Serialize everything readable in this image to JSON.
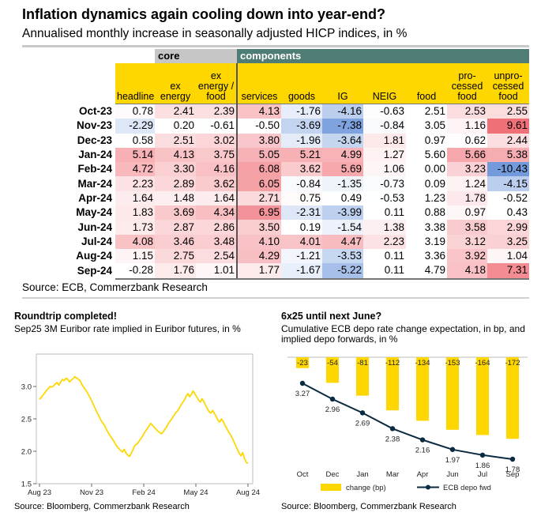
{
  "main": {
    "title": "Inflation dynamics again cooling down into year-end?",
    "subtitle": "Annualised monthly increase in seasonally adjusted HICP indices, in %",
    "group_core": "core",
    "group_components": "components",
    "columns": [
      "headline",
      "ex energy",
      "ex energy / food",
      "services",
      "goods",
      "IG",
      "NEIG",
      "food",
      "pro-cessed food",
      "unpro-cessed food"
    ],
    "source": "Source: ECB, Commerzbank Research"
  },
  "chart_data": [
    {
      "type": "table",
      "title": "Inflation dynamics again cooling down into year-end?",
      "subtitle": "Annualised monthly increase in seasonally adjusted HICP indices, in %",
      "columns": [
        "headline",
        "ex energy",
        "ex energy / food",
        "services",
        "goods",
        "IG",
        "NEIG",
        "food",
        "pro-cessed food",
        "unpro-cessed food"
      ],
      "rows": [
        "Oct-23",
        "Nov-23",
        "Dec-23",
        "Jan-24",
        "Feb-24",
        "Mar-24",
        "Apr-24",
        "May-24",
        "Jun-24",
        "Jul-24",
        "Aug-24",
        "Sep-24"
      ],
      "values": [
        [
          "0.78",
          "2.41",
          "2.39",
          "4.13",
          "-1.76",
          "-4.16",
          "-0.63",
          "2.51",
          "2.53",
          "2.55"
        ],
        [
          "-2.29",
          "0.20",
          "-0.61",
          "-0.50",
          "-3.69",
          "-7.38",
          "-0.84",
          "3.05",
          "1.16",
          "9.61"
        ],
        [
          "0.58",
          "2.51",
          "3.02",
          "3.80",
          "-1.96",
          "-3.64",
          "1.81",
          "0.97",
          "0.62",
          "2.44"
        ],
        [
          "5.14",
          "4.13",
          "3.75",
          "5.05",
          "5.21",
          "4.99",
          "1.27",
          "5.60",
          "5.66",
          "5.38"
        ],
        [
          "4.72",
          "3.30",
          "4.16",
          "6.08",
          "3.62",
          "5.69",
          "1.06",
          "0.00",
          "3.23",
          "-10.43"
        ],
        [
          "2.23",
          "2.89",
          "3.62",
          "6.05",
          "-0.84",
          "-1.35",
          "-0.73",
          "0.09",
          "1.24",
          "-4.15"
        ],
        [
          "1.64",
          "1.48",
          "1.64",
          "2.71",
          "0.75",
          "0.49",
          "-0.53",
          "1.23",
          "1.78",
          "-0.52"
        ],
        [
          "1.83",
          "3.69",
          "4.34",
          "6.95",
          "-2.31",
          "-3.99",
          "0.11",
          "0.88",
          "0.97",
          "0.43"
        ],
        [
          "1.73",
          "2.87",
          "2.86",
          "3.50",
          "0.19",
          "-1.54",
          "1.38",
          "3.38",
          "3.58",
          "2.99"
        ],
        [
          "4.08",
          "3.46",
          "3.48",
          "4.10",
          "4.01",
          "4.47",
          "2.23",
          "3.19",
          "3.12",
          "3.25"
        ],
        [
          "1.15",
          "2.75",
          "2.54",
          "4.29",
          "-1.21",
          "-3.53",
          "0.11",
          "3.36",
          "3.92",
          "1.04"
        ],
        [
          "-0.28",
          "1.76",
          "1.01",
          "1.77",
          "-1.67",
          "-5.22",
          "0.11",
          "4.79",
          "4.18",
          "7.31"
        ]
      ],
      "colors": {
        "header": "#ffd700",
        "core_group": "#c6c6c6",
        "components_group": "#4f7c74",
        "positive": "#f08080",
        "negative": "#6b8fd6"
      }
    },
    {
      "type": "line",
      "title": "Roundtrip completed!",
      "subtitle": "Sep25 3M Euribor rate implied in Euribor futures, in %",
      "x_ticks": [
        "Aug 23",
        "Nov 23",
        "Feb 24",
        "May 24",
        "Aug 24"
      ],
      "y_ticks": [
        "1.5",
        "2.0",
        "2.5",
        "3.0"
      ],
      "ylim": [
        1.5,
        3.5
      ],
      "series": [
        {
          "name": "Sep25 3M Euribor implied",
          "color": "#ffd700",
          "values": [
            2.8,
            2.83,
            2.87,
            2.9,
            2.94,
            2.97,
            3.0,
            2.99,
            3.01,
            3.04,
            3.06,
            3.02,
            3.07,
            3.11,
            3.09,
            3.13,
            3.11,
            3.07,
            3.1,
            3.12,
            3.15,
            3.13,
            3.11,
            3.09,
            3.03,
            2.99,
            2.95,
            2.91,
            2.86,
            2.81,
            2.75,
            2.69,
            2.63,
            2.58,
            2.52,
            2.47,
            2.43,
            2.39,
            2.33,
            2.28,
            2.24,
            2.2,
            2.16,
            2.11,
            2.07,
            2.04,
            2.01,
            1.99,
            2.03,
            1.97,
            1.94,
            1.92,
            1.97,
            2.03,
            2.09,
            2.11,
            2.14,
            2.18,
            2.22,
            2.27,
            2.31,
            2.35,
            2.39,
            2.43,
            2.4,
            2.37,
            2.34,
            2.31,
            2.29,
            2.27,
            2.3,
            2.34,
            2.38,
            2.43,
            2.47,
            2.51,
            2.55,
            2.59,
            2.62,
            2.66,
            2.71,
            2.75,
            2.79,
            2.85,
            2.89,
            2.84,
            2.88,
            2.93,
            2.88,
            2.84,
            2.79,
            2.76,
            2.81,
            2.77,
            2.71,
            2.66,
            2.61,
            2.59,
            2.63,
            2.58,
            2.54,
            2.48,
            2.45,
            2.5,
            2.46,
            2.4,
            2.35,
            2.3,
            2.26,
            2.21,
            2.15,
            2.09,
            2.03,
            1.97,
            1.93,
            1.98,
            1.89,
            1.83,
            1.81
          ]
        }
      ]
    },
    {
      "type": "bar",
      "title": "6x25 until next June?",
      "subtitle": "Cumulative ECB depo rate change expectation, in bp, and implied depo forwards, in %",
      "categories": [
        "Oct",
        "Dec",
        "Jan",
        "Mar",
        "Apr",
        "Jun",
        "Jul",
        "Sep"
      ],
      "series": [
        {
          "name": "change (bp)",
          "color": "#ffd700",
          "values": [
            -23,
            -54,
            -81,
            -112,
            -134,
            -153,
            -164,
            -172
          ]
        },
        {
          "name": "ECB depo fwd",
          "type": "line",
          "color": "#0a2a40",
          "values": [
            3.27,
            2.96,
            2.69,
            2.38,
            2.16,
            1.97,
            1.86,
            1.78
          ]
        }
      ],
      "value_labels": [
        "-23",
        "-54",
        "-81",
        "-112",
        "-134",
        "-153",
        "-164",
        "-172"
      ],
      "line_labels": [
        "3.27",
        "2.96",
        "2.69",
        "2.38",
        "2.16",
        "1.97",
        "1.86",
        "1.78"
      ]
    }
  ],
  "euribor": {
    "title": "Roundtrip completed!",
    "subtitle": "Sep25 3M Euribor rate implied in Euribor futures, in %",
    "source": "Source: Bloomberg, Commerzbank Research"
  },
  "ecb": {
    "title": "6x25 until next June?",
    "subtitle": "Cumulative ECB depo rate change expectation, in bp, and implied depo forwards, in %",
    "source": "Source: Bloomberg, Commerzbank Research"
  }
}
